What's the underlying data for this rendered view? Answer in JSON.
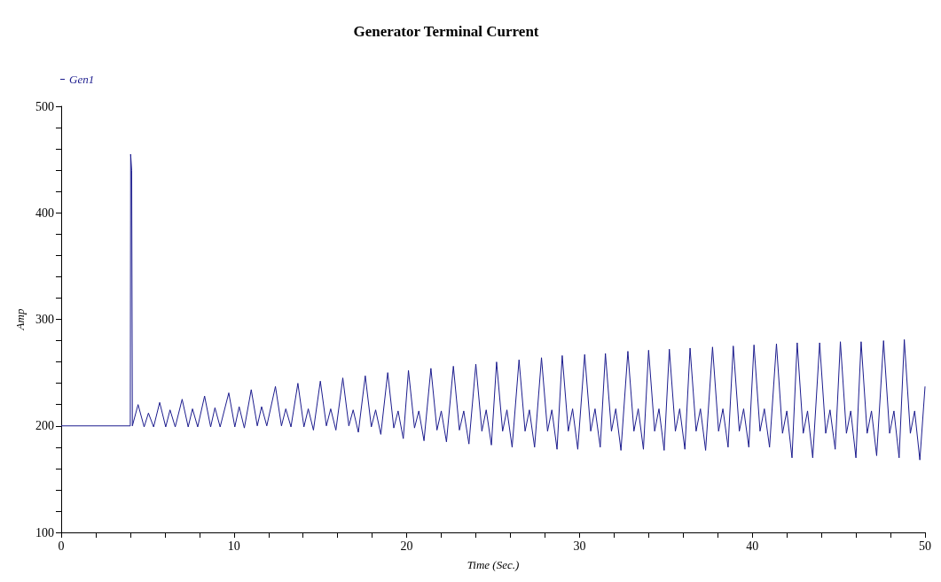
{
  "chart_data": {
    "type": "line",
    "title": "Generator Terminal Current",
    "xlabel": "Time (Sec.)",
    "ylabel": "Amp",
    "xlim": [
      0,
      50
    ],
    "xticks": [
      0,
      {
        "value": 2,
        "label": null
      },
      {
        "value": 4,
        "label": null
      },
      {
        "value": 6,
        "label": null
      },
      {
        "value": 8,
        "label": null
      },
      10,
      {
        "value": 12,
        "label": null
      },
      {
        "value": 14,
        "label": null
      },
      {
        "value": 16,
        "label": null
      },
      {
        "value": 18,
        "label": null
      },
      20,
      {
        "value": 22,
        "label": null
      },
      {
        "value": 24,
        "label": null
      },
      {
        "value": 26,
        "label": null
      },
      {
        "value": 28,
        "label": null
      },
      30,
      {
        "value": 32,
        "label": null
      },
      {
        "value": 34,
        "label": null
      },
      {
        "value": 36,
        "label": null
      },
      {
        "value": 38,
        "label": null
      },
      40,
      {
        "value": 42,
        "label": null
      },
      {
        "value": 44,
        "label": null
      },
      {
        "value": 46,
        "label": null
      },
      {
        "value": 48,
        "label": null
      },
      50
    ],
    "ylim": [
      100,
      500
    ],
    "yticks": [
      100,
      {
        "value": 120,
        "label": null
      },
      {
        "value": 140,
        "label": null
      },
      {
        "value": 160,
        "label": null
      },
      {
        "value": 180,
        "label": null
      },
      200,
      {
        "value": 220,
        "label": null
      },
      {
        "value": 240,
        "label": null
      },
      {
        "value": 260,
        "label": null
      },
      {
        "value": 280,
        "label": null
      },
      300,
      {
        "value": 320,
        "label": null
      },
      {
        "value": 340,
        "label": null
      },
      {
        "value": 360,
        "label": null
      },
      {
        "value": 380,
        "label": null
      },
      400,
      {
        "value": 420,
        "label": null
      },
      {
        "value": 440,
        "label": null
      },
      {
        "value": 460,
        "label": null
      },
      {
        "value": 480,
        "label": null
      },
      500
    ],
    "grid": false,
    "legend": "top left",
    "marker": "none",
    "line_style": "solid",
    "series": [
      {
        "name": "Gen1",
        "color": "#1c1c8e",
        "x": [
          0,
          4,
          4.02,
          4.08,
          4.1,
          4.12,
          4.45,
          4.8,
          5.05,
          5.35,
          5.7,
          6.05,
          6.3,
          6.6,
          7.0,
          7.35,
          7.6,
          7.9,
          8.3,
          8.65,
          8.9,
          9.2,
          9.7,
          10.05,
          10.3,
          10.6,
          11.0,
          11.35,
          11.6,
          11.9,
          12.4,
          12.75,
          13.0,
          13.3,
          13.7,
          14.05,
          14.3,
          14.6,
          15.0,
          15.35,
          15.6,
          15.9,
          16.3,
          16.65,
          16.9,
          17.2,
          17.6,
          17.95,
          18.2,
          18.5,
          18.9,
          19.25,
          19.5,
          19.8,
          20.1,
          20.45,
          20.7,
          21.0,
          21.4,
          21.75,
          22.0,
          22.3,
          22.7,
          23.05,
          23.3,
          23.6,
          24.0,
          24.35,
          24.6,
          24.9,
          25.2,
          25.55,
          25.8,
          26.1,
          26.5,
          26.85,
          27.1,
          27.4,
          27.8,
          28.15,
          28.4,
          28.7,
          29.0,
          29.35,
          29.6,
          29.9,
          30.3,
          30.65,
          30.9,
          31.2,
          31.5,
          31.85,
          32.1,
          32.4,
          32.8,
          33.15,
          33.4,
          33.7,
          34.0,
          34.35,
          34.6,
          34.9,
          35.2,
          35.55,
          35.8,
          36.1,
          36.4,
          36.75,
          37.0,
          37.3,
          37.7,
          38.05,
          38.3,
          38.6,
          38.9,
          39.25,
          39.5,
          39.8,
          40.1,
          40.45,
          40.7,
          41.0,
          41.4,
          41.75,
          42.0,
          42.3,
          42.6,
          42.95,
          43.2,
          43.5,
          43.9,
          44.25,
          44.5,
          44.8,
          45.1,
          45.45,
          45.7,
          46.0,
          46.3,
          46.65,
          46.9,
          47.2,
          47.6,
          47.95,
          48.2,
          48.5,
          48.8,
          49.15,
          49.4,
          49.7,
          50
        ],
        "values": [
          200,
          200,
          455,
          440,
          440,
          200,
          220,
          199,
          212,
          199,
          222,
          199,
          215,
          199,
          225,
          199,
          216,
          199,
          228,
          199,
          217,
          199,
          231,
          199,
          218,
          198,
          234,
          200,
          218,
          200,
          237,
          200,
          216,
          199,
          240,
          199,
          216,
          196,
          242,
          200,
          216,
          196,
          245,
          200,
          215,
          194,
          247,
          199,
          215,
          192,
          250,
          198,
          214,
          188,
          252,
          198,
          214,
          186,
          254,
          196,
          214,
          185,
          256,
          196,
          214,
          183,
          258,
          195,
          215,
          182,
          260,
          195,
          215,
          180,
          262,
          195,
          215,
          180,
          264,
          195,
          215,
          178,
          266,
          195,
          216,
          178,
          267,
          195,
          216,
          180,
          268,
          195,
          216,
          177,
          270,
          195,
          216,
          178,
          271,
          195,
          216,
          177,
          272,
          195,
          216,
          178,
          273,
          195,
          216,
          177,
          274,
          195,
          216,
          180,
          275,
          195,
          216,
          180,
          276,
          195,
          216,
          180,
          277,
          193,
          214,
          170,
          278,
          193,
          214,
          170,
          278,
          193,
          215,
          178,
          279,
          193,
          214,
          170,
          279,
          193,
          214,
          172,
          280,
          193,
          214,
          170,
          281,
          193,
          214,
          168,
          237
        ]
      }
    ]
  }
}
